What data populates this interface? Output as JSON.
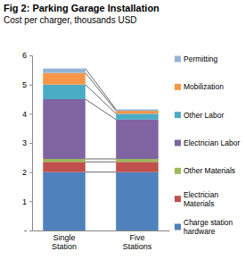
{
  "chart_data": {
    "type": "bar",
    "title": "Fig 2: Parking Garage Installation",
    "subtitle": "Cost per charger, thousands USD",
    "categories": [
      "Single Station",
      "Five Stations"
    ],
    "series": [
      {
        "name": "Charge station hardware",
        "color": "#4f81bd",
        "values": [
          2.0,
          2.0
        ]
      },
      {
        "name": "Electrician Materials",
        "color": "#c0504d",
        "values": [
          0.35,
          0.35
        ]
      },
      {
        "name": "Other Materials",
        "color": "#9bbb59",
        "values": [
          0.1,
          0.1
        ]
      },
      {
        "name": "Electrician Labor",
        "color": "#8064a2",
        "values": [
          2.05,
          1.35
        ]
      },
      {
        "name": "Other Labor",
        "color": "#4bacc6",
        "values": [
          0.5,
          0.2
        ]
      },
      {
        "name": "Mobilization",
        "color": "#f79646",
        "values": [
          0.4,
          0.1
        ]
      },
      {
        "name": "Permitting",
        "color": "#95b3d7",
        "values": [
          0.15,
          0.05
        ]
      }
    ],
    "ylim": [
      0,
      6
    ],
    "yticks": [
      {
        "value": 0,
        "label": "-"
      },
      1,
      2,
      3,
      4,
      5,
      6
    ],
    "stacked": true,
    "grid": false,
    "legend": "right"
  }
}
